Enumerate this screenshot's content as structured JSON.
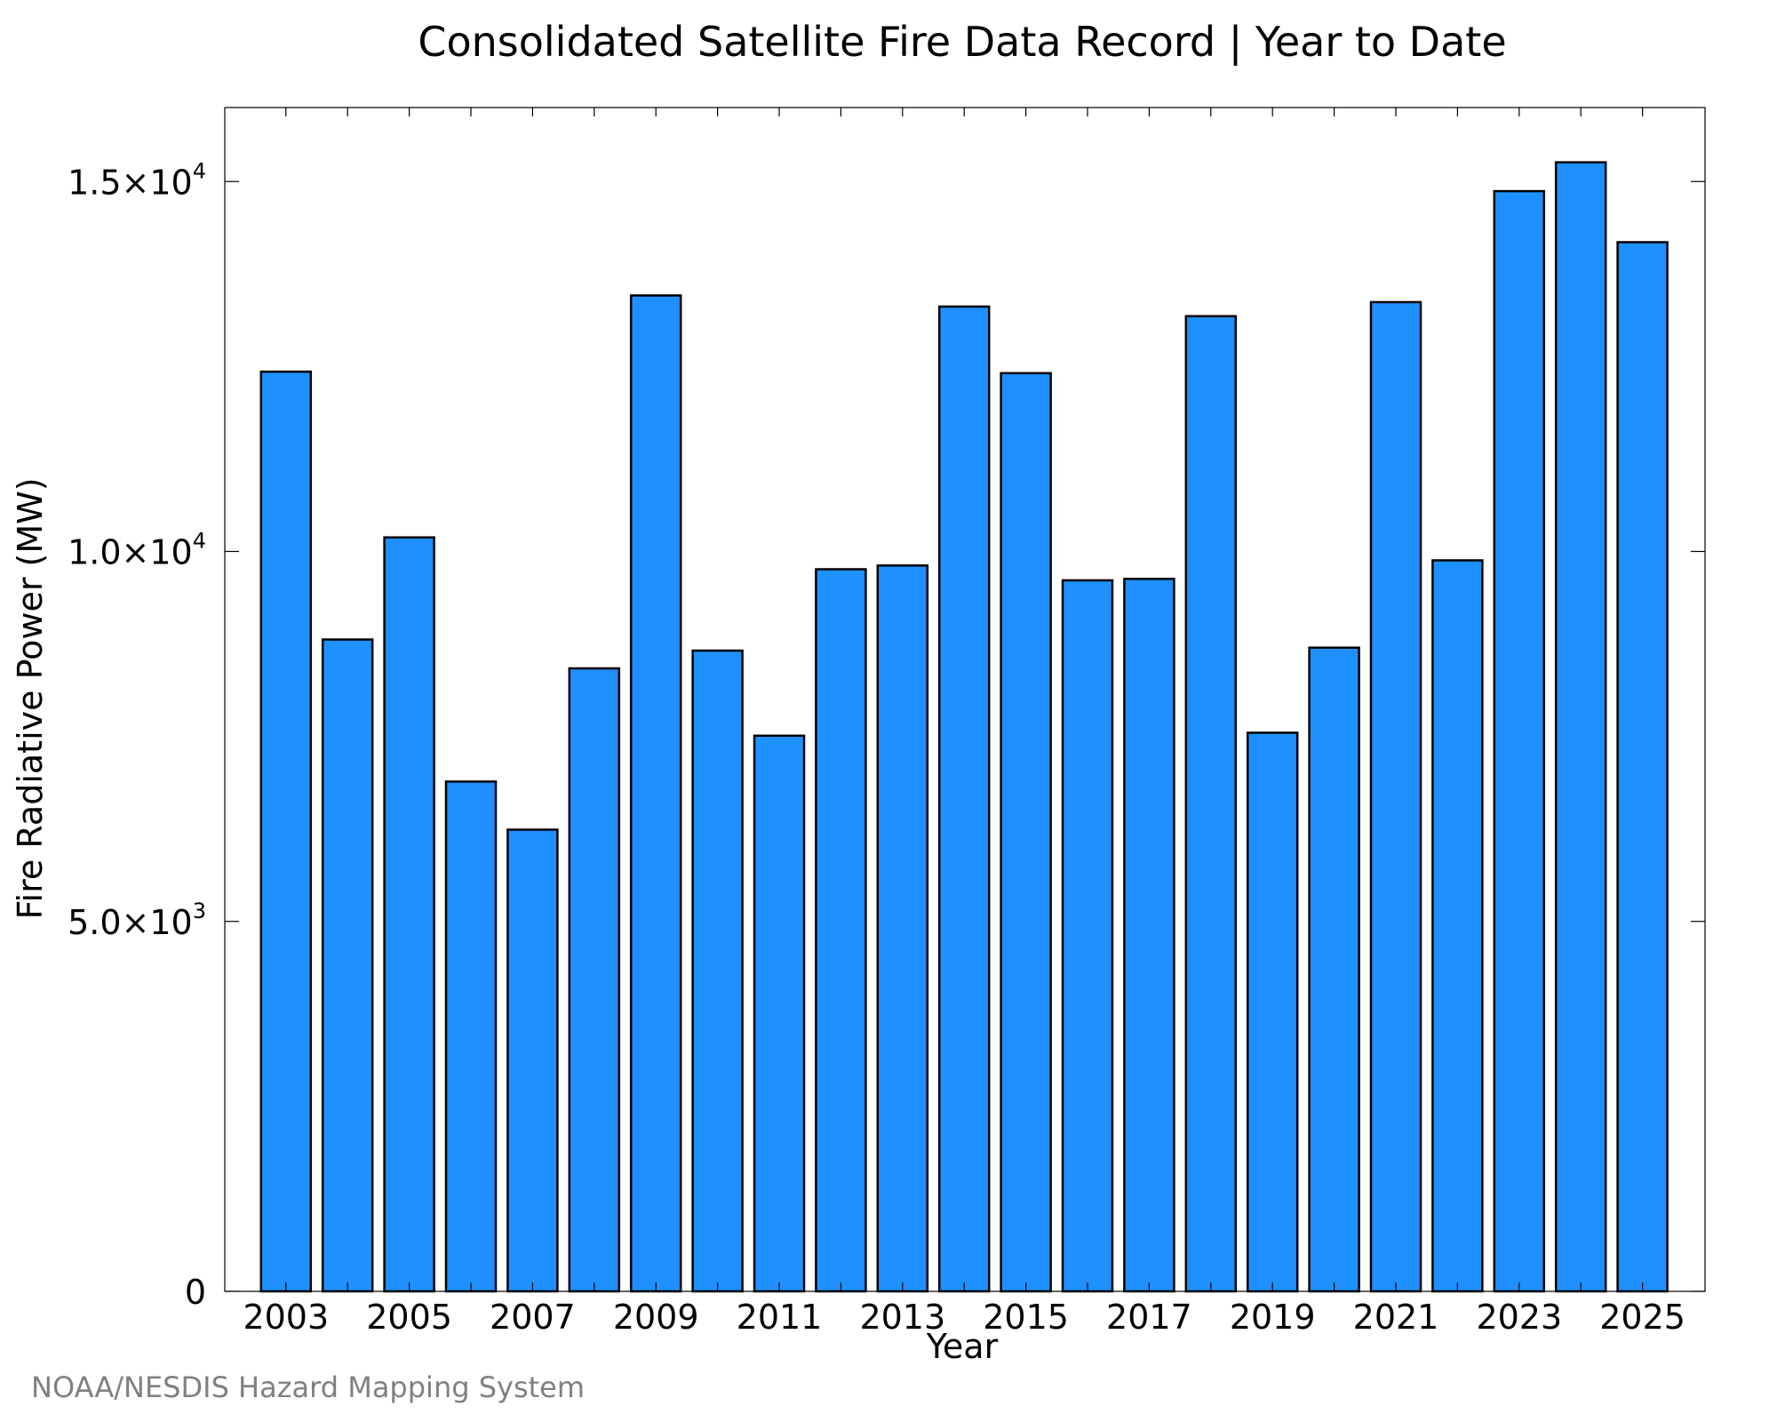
{
  "chart_data": {
    "type": "bar",
    "title": "Consolidated Satellite Fire Data Record | Year to Date",
    "xlabel": "Year",
    "ylabel": "Fire Radiative Power (MW)",
    "ylim": [
      0,
      16000
    ],
    "categories": [
      "2003",
      "2004",
      "2005",
      "2006",
      "2007",
      "2008",
      "2009",
      "2010",
      "2011",
      "2012",
      "2013",
      "2014",
      "2015",
      "2016",
      "2017",
      "2018",
      "2019",
      "2020",
      "2021",
      "2022",
      "2023",
      "2024",
      "2025"
    ],
    "values": [
      12430,
      8810,
      10190,
      6890,
      6240,
      8420,
      13460,
      8660,
      7510,
      9760,
      9810,
      13310,
      12410,
      9610,
      9630,
      13180,
      7550,
      8700,
      13370,
      9880,
      14870,
      15260,
      14180
    ],
    "x_tick_labels": [
      "2003",
      "2005",
      "2007",
      "2009",
      "2011",
      "2013",
      "2015",
      "2017",
      "2019",
      "2021",
      "2023",
      "2025"
    ],
    "y_ticks": [
      {
        "value": 0,
        "label": "0",
        "exp": ""
      },
      {
        "value": 5000,
        "label": "5.0×10",
        "exp": "3"
      },
      {
        "value": 10000,
        "label": "1.0×10",
        "exp": "4"
      },
      {
        "value": 15000,
        "label": "1.5×10",
        "exp": "4"
      }
    ],
    "bar_color": "#1e90ff",
    "bar_edge_color": "#000000",
    "grid": false,
    "legend": "none"
  },
  "credit": "NOAA/NESDIS Hazard Mapping System"
}
